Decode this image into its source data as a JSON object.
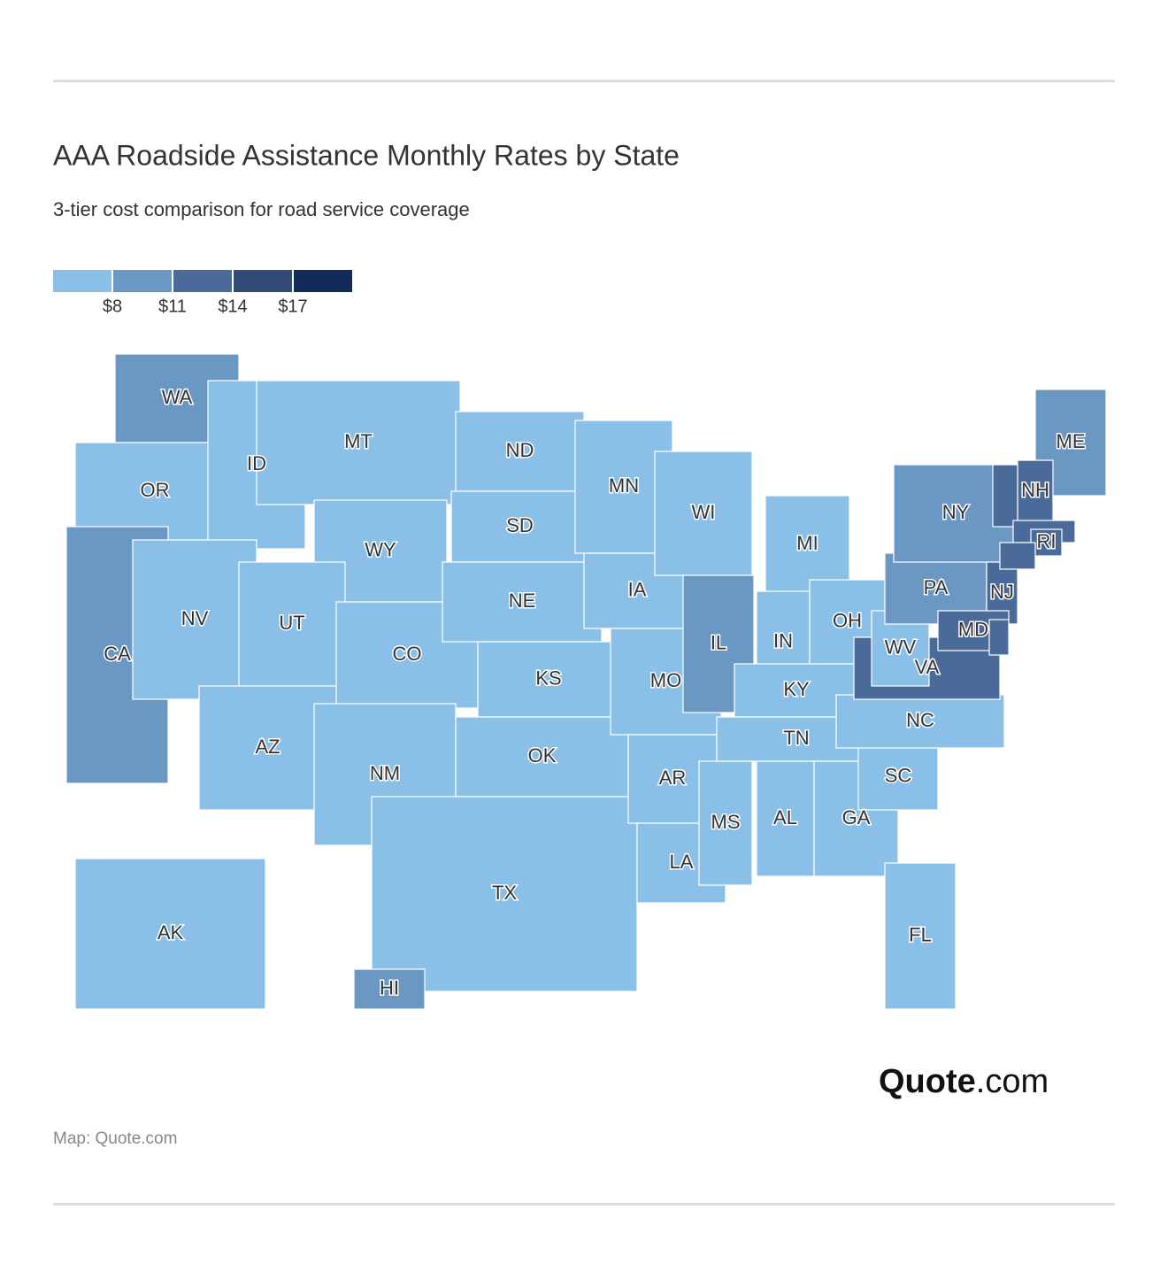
{
  "header": {
    "title": "AAA Roadside Assistance Monthly Rates by State",
    "subtitle": "3-tier cost comparison for road service coverage"
  },
  "legend": {
    "colors": [
      "#8ac0e8",
      "#6b97c3",
      "#4a6b99",
      "#324a75",
      "#132b58"
    ],
    "ticks": [
      {
        "value": 8,
        "label": "$8"
      },
      {
        "value": 11,
        "label": "$11"
      },
      {
        "value": 14,
        "label": "$14"
      },
      {
        "value": 17,
        "label": "$17"
      }
    ]
  },
  "states": [
    {
      "label": "WA",
      "color": "#6b97c3"
    },
    {
      "label": "OR",
      "color": "#8ac0e8"
    },
    {
      "label": "CA",
      "color": "#6b97c3"
    },
    {
      "label": "ID",
      "color": "#8ac0e8"
    },
    {
      "label": "NV",
      "color": "#8ac0e8"
    },
    {
      "label": "MT",
      "color": "#8ac0e8"
    },
    {
      "label": "WY",
      "color": "#8ac0e8"
    },
    {
      "label": "UT",
      "color": "#8ac0e8"
    },
    {
      "label": "CO",
      "color": "#8ac0e8"
    },
    {
      "label": "AZ",
      "color": "#8ac0e8"
    },
    {
      "label": "NM",
      "color": "#8ac0e8"
    },
    {
      "label": "ND",
      "color": "#8ac0e8"
    },
    {
      "label": "SD",
      "color": "#8ac0e8"
    },
    {
      "label": "NE",
      "color": "#8ac0e8"
    },
    {
      "label": "KS",
      "color": "#8ac0e8"
    },
    {
      "label": "OK",
      "color": "#8ac0e8"
    },
    {
      "label": "TX",
      "color": "#8ac0e8"
    },
    {
      "label": "MN",
      "color": "#8ac0e8"
    },
    {
      "label": "IA",
      "color": "#8ac0e8"
    },
    {
      "label": "MO",
      "color": "#8ac0e8"
    },
    {
      "label": "AR",
      "color": "#8ac0e8"
    },
    {
      "label": "LA",
      "color": "#8ac0e8"
    },
    {
      "label": "WI",
      "color": "#8ac0e8"
    },
    {
      "label": "IL",
      "color": "#6b97c3"
    },
    {
      "label": "MI",
      "color": "#8ac0e8"
    },
    {
      "label": "IN",
      "color": "#8ac0e8"
    },
    {
      "label": "OH",
      "color": "#8ac0e8"
    },
    {
      "label": "KY",
      "color": "#8ac0e8"
    },
    {
      "label": "TN",
      "color": "#8ac0e8"
    },
    {
      "label": "MS",
      "color": "#8ac0e8"
    },
    {
      "label": "AL",
      "color": "#8ac0e8"
    },
    {
      "label": "GA",
      "color": "#8ac0e8"
    },
    {
      "label": "FL",
      "color": "#8ac0e8"
    },
    {
      "label": "SC",
      "color": "#8ac0e8"
    },
    {
      "label": "NC",
      "color": "#8ac0e8"
    },
    {
      "label": "VA",
      "color": "#4a6b99"
    },
    {
      "label": "WV",
      "color": "#8ac0e8"
    },
    {
      "label": "PA",
      "color": "#6b97c3"
    },
    {
      "label": "NY",
      "color": "#6b97c3"
    },
    {
      "label": "NJ",
      "color": "#4a6b99"
    },
    {
      "label": "MD",
      "color": "#4a6b99"
    },
    {
      "label": "ME",
      "color": "#6b97c3"
    },
    {
      "label": "NH",
      "color": "#4a6b99"
    },
    {
      "label": null,
      "color": "#4a6b99"
    },
    {
      "label": null,
      "color": "#4a6b99"
    },
    {
      "label": "RI",
      "color": "#4a6b99"
    },
    {
      "label": null,
      "color": "#4a6b99"
    },
    {
      "label": null,
      "color": "#4a6b99"
    },
    {
      "label": "AK",
      "color": "#8ac0e8"
    },
    {
      "label": "HI",
      "color": "#6b97c3"
    }
  ],
  "logo": {
    "bold": "Quote",
    "light": ".com"
  },
  "source": "Map: Quote.com"
}
